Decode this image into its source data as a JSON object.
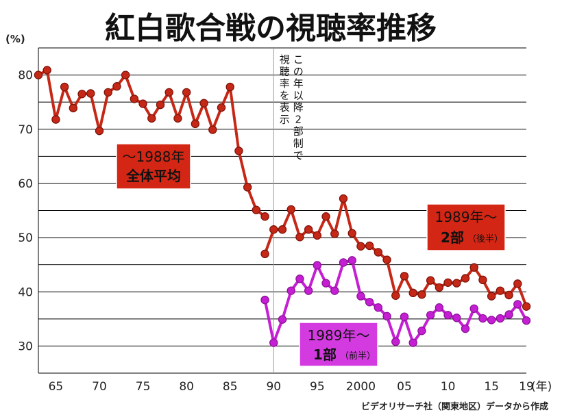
{
  "chart_data": {
    "type": "line",
    "title": "紅白歌合戦の視聴率推移",
    "ylabel": "(%)",
    "xlabel": "(年)",
    "source": "ビデオリサーチ社（関東地区）データから作成",
    "ylim": [
      25,
      85
    ],
    "xlim": [
      1963,
      2019
    ],
    "yticks": [
      30,
      40,
      50,
      60,
      70,
      80
    ],
    "xticks": [
      {
        "value": 1965,
        "label": "65"
      },
      {
        "value": 1970,
        "label": "70"
      },
      {
        "value": 1975,
        "label": "75"
      },
      {
        "value": 1980,
        "label": "80"
      },
      {
        "value": 1985,
        "label": "85"
      },
      {
        "value": 1990,
        "label": "90"
      },
      {
        "value": 1995,
        "label": "95"
      },
      {
        "value": 2000,
        "label": "2000"
      },
      {
        "value": 2005,
        "label": "05"
      },
      {
        "value": 2010,
        "label": "10"
      },
      {
        "value": 2015,
        "label": "15"
      },
      {
        "value": 2019,
        "label": "19"
      }
    ],
    "grid": true,
    "annotation": {
      "x": 1990,
      "lines": [
        "この年以降2部制で",
        "視聴率を表示"
      ]
    },
    "series": [
      {
        "name": "〜1988年 全体平均",
        "name_lines": [
          "〜1988年",
          "全体平均"
        ],
        "color": "#c62817",
        "x": [
          1963,
          1964,
          1965,
          1966,
          1967,
          1968,
          1969,
          1970,
          1971,
          1972,
          1973,
          1974,
          1975,
          1976,
          1977,
          1978,
          1979,
          1980,
          1981,
          1982,
          1983,
          1984,
          1985,
          1986,
          1987,
          1988,
          1989
        ],
        "values": [
          80.0,
          80.9,
          71.8,
          77.8,
          73.9,
          76.5,
          76.6,
          69.7,
          76.8,
          77.9,
          80.0,
          75.6,
          74.7,
          72.0,
          74.5,
          76.8,
          72.0,
          76.8,
          71.0,
          74.8,
          69.9,
          74.0,
          77.8,
          66.0,
          59.3,
          55.1,
          53.9
        ]
      },
      {
        "name": "1989年〜 2部（後半）",
        "name_lines": [
          "1989年〜",
          "2部",
          "（後半）"
        ],
        "color": "#c62817",
        "x": [
          1989,
          1990,
          1991,
          1992,
          1993,
          1994,
          1995,
          1996,
          1997,
          1998,
          1999,
          2000,
          2001,
          2002,
          2003,
          2004,
          2005,
          2006,
          2007,
          2008,
          2009,
          2010,
          2011,
          2012,
          2013,
          2014,
          2015,
          2016,
          2017,
          2018,
          2019
        ],
        "values": [
          47.0,
          51.5,
          51.5,
          55.2,
          50.1,
          51.5,
          50.4,
          53.9,
          50.7,
          57.2,
          50.8,
          48.4,
          48.5,
          47.3,
          45.9,
          39.3,
          42.9,
          39.8,
          39.5,
          42.1,
          40.8,
          41.7,
          41.6,
          42.5,
          44.5,
          42.2,
          39.2,
          40.2,
          39.4,
          41.5,
          37.3
        ]
      },
      {
        "name": "1989年〜 1部（前半）",
        "name_lines": [
          "1989年〜",
          "1部",
          "（前半）"
        ],
        "color": "#c51fd3",
        "x": [
          1989,
          1990,
          1991,
          1992,
          1993,
          1994,
          1995,
          1996,
          1997,
          1998,
          1999,
          2000,
          2001,
          2002,
          2003,
          2004,
          2005,
          2006,
          2007,
          2008,
          2009,
          2010,
          2011,
          2012,
          2013,
          2014,
          2015,
          2016,
          2017,
          2018,
          2019
        ],
        "values": [
          38.5,
          30.6,
          34.9,
          40.2,
          42.4,
          40.2,
          44.9,
          41.6,
          40.2,
          45.4,
          45.8,
          39.2,
          38.1,
          37.1,
          35.5,
          30.8,
          35.4,
          30.6,
          32.8,
          35.7,
          37.1,
          35.7,
          35.2,
          33.2,
          36.9,
          35.1,
          34.8,
          35.1,
          35.8,
          37.7,
          34.7
        ]
      }
    ]
  },
  "colors": {
    "background": "#ffffff",
    "grid": "#000000",
    "red_series": "#c62817",
    "red_marker_edge": "#7a1208",
    "purple_series": "#c51fd3",
    "purple_marker_edge": "#8a1096",
    "red_box": "#d42614",
    "purple_box": "#d33be0"
  }
}
